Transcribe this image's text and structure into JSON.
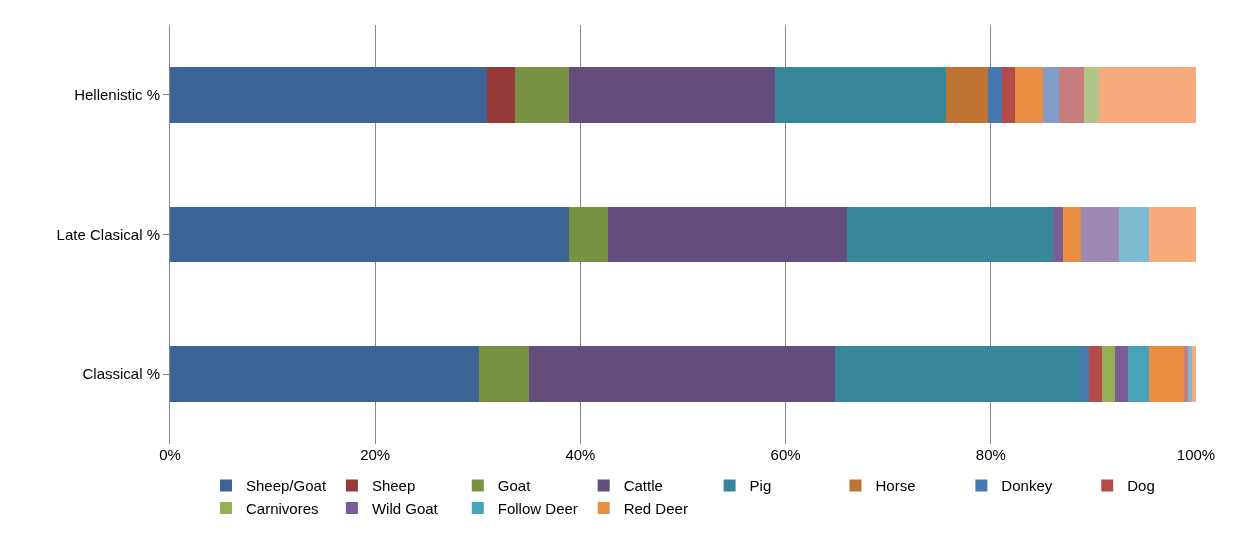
{
  "chart_data": {
    "type": "bar",
    "orientation": "horizontal",
    "stacked": true,
    "categories": [
      "Hellenistic %",
      "Late Clasical %",
      "Classical %"
    ],
    "xlim": [
      0,
      100
    ],
    "xticks": [
      {
        "value": 0,
        "label": "0%"
      },
      {
        "value": 20,
        "label": "20%"
      },
      {
        "value": 40,
        "label": "40%"
      },
      {
        "value": 60,
        "label": "60%"
      },
      {
        "value": 80,
        "label": "80%"
      },
      {
        "value": 100,
        "label": "100%"
      }
    ],
    "grid": "x",
    "legend": "bottom",
    "series": [
      {
        "name": "Sheep/Goat",
        "color": "#3c6496",
        "values": [
          30.9,
          38.9,
          30.1
        ]
      },
      {
        "name": "Sheep",
        "color": "#953a38",
        "values": [
          2.7,
          0,
          0
        ]
      },
      {
        "name": "Goat",
        "color": "#799143",
        "values": [
          5.3,
          3.8,
          4.9
        ]
      },
      {
        "name": "Cattle",
        "color": "#634d7c",
        "values": [
          20.1,
          23.3,
          29.8
        ]
      },
      {
        "name": "Pig",
        "color": "#38869a",
        "values": [
          16.6,
          20.1,
          24.0
        ]
      },
      {
        "name": "Horse",
        "color": "#c07434",
        "values": [
          4.1,
          0,
          0
        ]
      },
      {
        "name": "Donkey",
        "color": "#4878b0",
        "values": [
          1.4,
          0,
          0.8
        ]
      },
      {
        "name": "Dog",
        "color": "#b44b49",
        "values": [
          1.3,
          0,
          1.2
        ]
      },
      {
        "name": "Carnivores",
        "color": "#94b055",
        "values": [
          0,
          0,
          1.3
        ]
      },
      {
        "name": "Wild Goat",
        "color": "#7a5c96",
        "values": [
          0,
          0.9,
          1.3
        ]
      },
      {
        "name": "Follow Deer",
        "color": "#48a2b8",
        "values": [
          0,
          0,
          2.0
        ]
      },
      {
        "name": "Red Deer",
        "color": "#e88d42",
        "values": [
          2.7,
          1.8,
          3.4
        ]
      },
      {
        "color": "#809cc8",
        "values": [
          1.5,
          0,
          0
        ]
      },
      {
        "color": "#c97c7c",
        "values": [
          2.5,
          0,
          0.4
        ]
      },
      {
        "color": "#aec688",
        "values": [
          1.4,
          0,
          0
        ]
      },
      {
        "color": "#9c8ab4",
        "values": [
          0,
          3.7,
          0
        ]
      },
      {
        "color": "#7db9cf",
        "values": [
          0,
          2.9,
          0.4
        ]
      },
      {
        "color": "#f7ab7b",
        "values": [
          9.5,
          4.6,
          0.4
        ]
      }
    ]
  }
}
